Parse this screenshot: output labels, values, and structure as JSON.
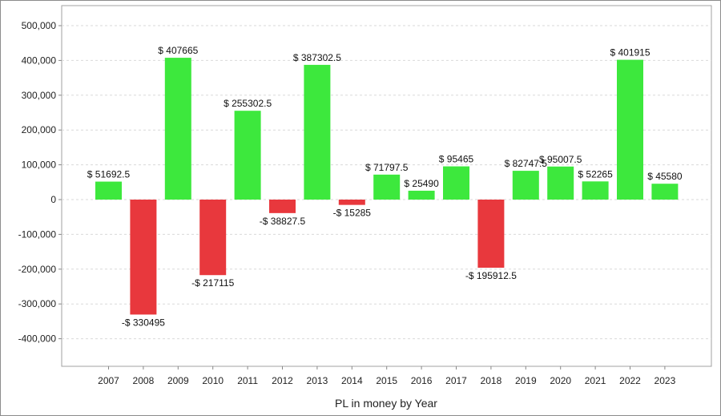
{
  "chart_data": {
    "type": "bar",
    "title": "",
    "xlabel": "PL in money by Year",
    "ylabel": "",
    "ylim": [
      -480000,
      500000
    ],
    "yticks": [
      -400000,
      -300000,
      -200000,
      -100000,
      0,
      100000,
      200000,
      300000,
      400000,
      500000
    ],
    "ytick_labels": [
      "-400,000",
      "-300,000",
      "-200,000",
      "-100,000",
      "0",
      "100,000",
      "200,000",
      "300,000",
      "400,000",
      "500,000"
    ],
    "grid": true,
    "categories": [
      "2007",
      "2008",
      "2009",
      "2010",
      "2011",
      "2012",
      "2013",
      "2014",
      "2015",
      "2016",
      "2017",
      "2018",
      "2019",
      "2020",
      "2021",
      "2022",
      "2023"
    ],
    "values": [
      51692.5,
      -330495,
      407665,
      -217115,
      255302.5,
      -38827.5,
      387302.5,
      -15285,
      71797.5,
      25490,
      95465,
      -195912.5,
      82747.5,
      95007.5,
      52265,
      401915,
      45580
    ],
    "data_labels": [
      "$ 51692.5",
      "-$ 330495",
      "$ 407665",
      "-$ 217115",
      "$ 255302.5",
      "-$ 38827.5",
      "$ 387302.5",
      "-$ 15285",
      "$ 71797.5",
      "$ 25490",
      "$ 95465",
      "-$ 195912.5",
      "$ 82747.5",
      "$ 95007.5",
      "$ 52265",
      "$ 401915",
      "$ 45580"
    ],
    "colors": {
      "positive": "#3de83d",
      "negative": "#e8383d"
    }
  }
}
